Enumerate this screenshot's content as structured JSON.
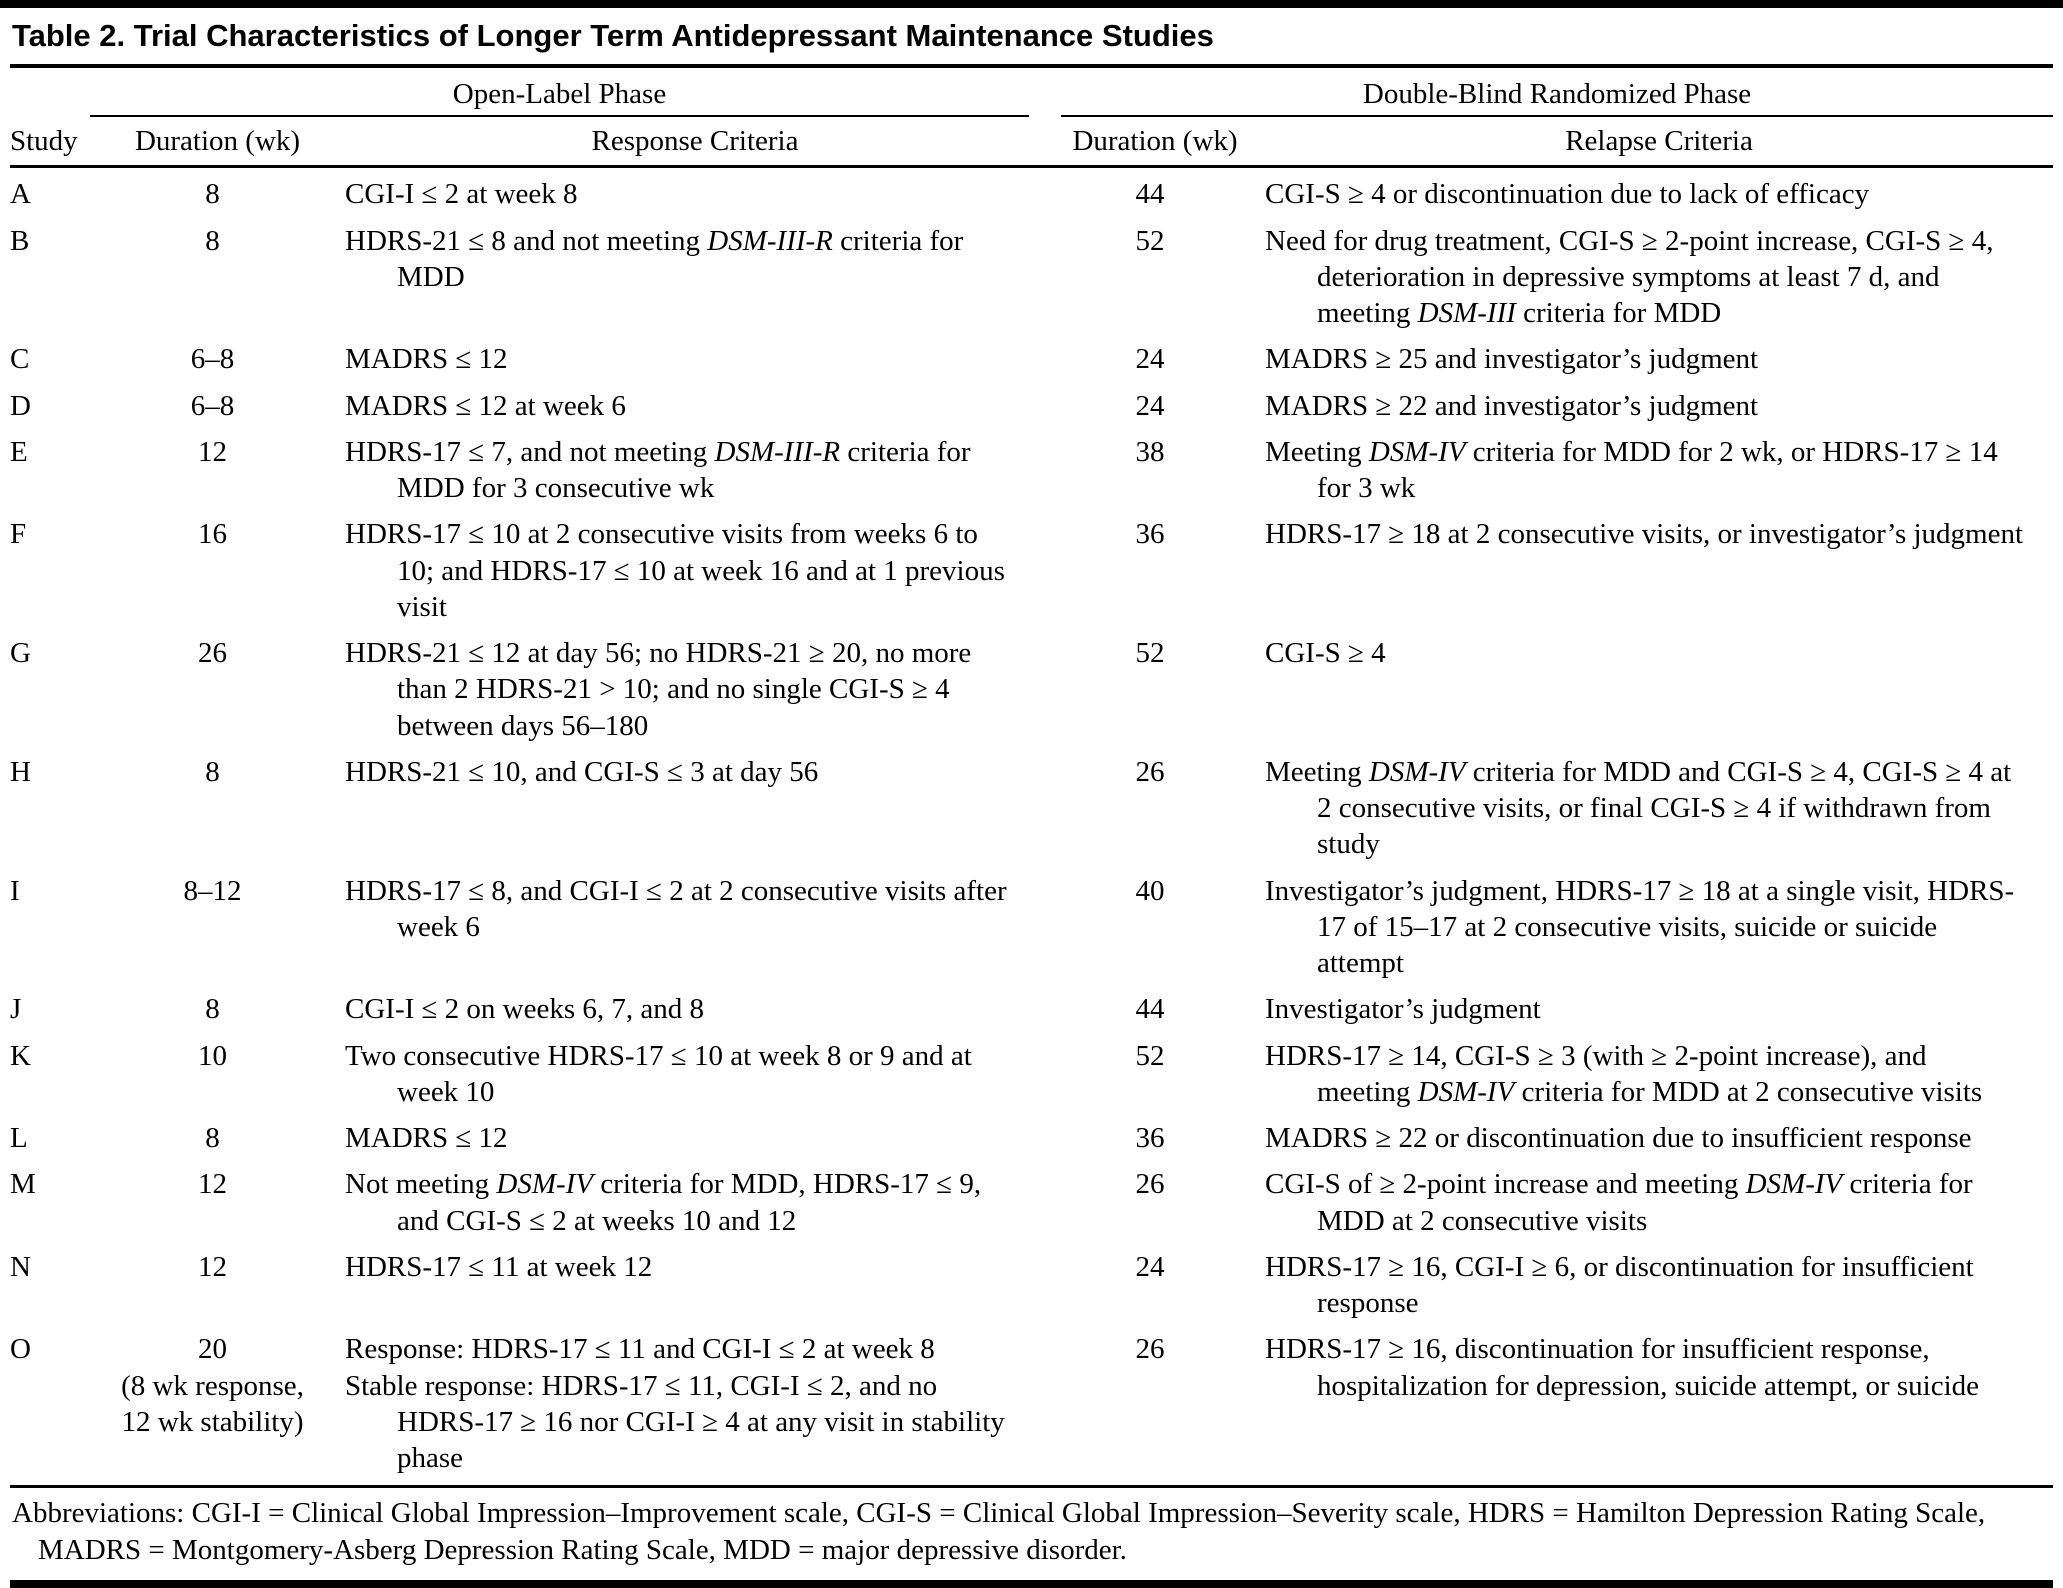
{
  "colors": {
    "text": "#000000",
    "background": "#ffffff",
    "rule": "#000000"
  },
  "title": "Table 2. Trial Characteristics of Longer Term Antidepressant Maintenance Studies",
  "header": {
    "open_label": "Open-Label Phase",
    "double_blind": "Double-Blind Randomized Phase",
    "study": "Study",
    "duration_open": "Duration (wk)",
    "response": "Response Criteria",
    "duration_db": "Duration (wk)",
    "relapse": "Relapse Criteria"
  },
  "rows": [
    {
      "study": "A",
      "ol_duration": "8",
      "response": "CGI-I ≤ 2 at week 8",
      "db_duration": "44",
      "relapse": "CGI-S ≥ 4 or discontinuation due to lack of efficacy"
    },
    {
      "study": "B",
      "ol_duration": "8",
      "response": "HDRS-21 ≤ 8 and not meeting *DSM-III-R* criteria for MDD",
      "db_duration": "52",
      "relapse": "Need for drug treatment, CGI-S ≥ 2-point increase, CGI-S ≥ 4, deterioration in depressive symptoms at least 7 d, and meeting *DSM-III* criteria for MDD"
    },
    {
      "study": "C",
      "ol_duration": "6–8",
      "response": "MADRS ≤ 12",
      "db_duration": "24",
      "relapse": "MADRS ≥ 25 and investigator’s judgment"
    },
    {
      "study": "D",
      "ol_duration": "6–8",
      "response": "MADRS ≤ 12 at week 6",
      "db_duration": "24",
      "relapse": "MADRS ≥ 22 and investigator’s judgment"
    },
    {
      "study": "E",
      "ol_duration": "12",
      "response": "HDRS-17 ≤ 7, and not meeting *DSM-III-R* criteria for MDD for 3 consecutive wk",
      "db_duration": "38",
      "relapse": "Meeting *DSM-IV* criteria for MDD for 2 wk, or HDRS-17 ≥ 14 for 3 wk"
    },
    {
      "study": "F",
      "ol_duration": "16",
      "response": "HDRS-17 ≤ 10 at 2 consecutive visits from weeks 6 to 10; and HDRS-17 ≤ 10 at week 16 and at 1 previous visit",
      "db_duration": "36",
      "relapse": "HDRS-17 ≥ 18 at 2 consecutive visits, or investigator’s judgment"
    },
    {
      "study": "G",
      "ol_duration": "26",
      "response": "HDRS-21 ≤ 12 at day 56; no HDRS-21 ≥ 20, no more than 2 HDRS-21 > 10; and no single CGI-S ≥ 4 between days 56–180",
      "db_duration": "52",
      "relapse": "CGI-S ≥ 4"
    },
    {
      "study": "H",
      "ol_duration": "8",
      "response": "HDRS-21 ≤ 10, and CGI-S ≤ 3 at day 56",
      "db_duration": "26",
      "relapse": "Meeting *DSM-IV* criteria for MDD and CGI-S ≥ 4, CGI-S ≥ 4 at 2 consecutive visits, or final CGI-S ≥ 4 if withdrawn from study"
    },
    {
      "study": "I",
      "ol_duration": "8–12",
      "response": "HDRS-17 ≤ 8, and CGI-I ≤ 2 at 2 consecutive visits after week 6",
      "db_duration": "40",
      "relapse": "Investigator’s judgment, HDRS-17 ≥ 18 at a single visit, HDRS-17 of 15–17 at 2 consecutive visits, suicide or suicide attempt"
    },
    {
      "study": "J",
      "ol_duration": "8",
      "response": "CGI-I ≤ 2 on weeks 6, 7, and 8",
      "db_duration": "44",
      "relapse": "Investigator’s judgment"
    },
    {
      "study": "K",
      "ol_duration": "10",
      "response": "Two consecutive HDRS-17 ≤ 10 at week 8 or 9 and at week 10",
      "db_duration": "52",
      "relapse": "HDRS-17 ≥ 14, CGI-S ≥ 3 (with ≥ 2-point increase), and meeting *DSM-IV* criteria for MDD at 2 consecutive visits"
    },
    {
      "study": "L",
      "ol_duration": "8",
      "response": "MADRS ≤ 12",
      "db_duration": "36",
      "relapse": "MADRS ≥ 22 or discontinuation due to insufficient response"
    },
    {
      "study": "M",
      "ol_duration": "12",
      "response": "Not meeting *DSM-IV* criteria for MDD, HDRS-17 ≤ 9, and CGI-S ≤ 2 at weeks 10 and 12",
      "db_duration": "26",
      "relapse": "CGI-S of ≥ 2-point increase and meeting *DSM-IV* criteria for MDD at 2 consecutive visits"
    },
    {
      "study": "N",
      "ol_duration": "12",
      "response": "HDRS-17 ≤ 11 at week 12",
      "db_duration": "24",
      "relapse": "HDRS-17 ≥ 16, CGI-I ≥ 6, or discontinuation for insufficient response"
    },
    {
      "study": "O",
      "ol_duration": "20\n(8 wk response,\n12 wk stability)",
      "response": "Response: HDRS-17 ≤ 11 and CGI-I ≤ 2 at week 8\nStable response: HDRS-17 ≤ 11, CGI-I ≤ 2, and no HDRS-17 ≥ 16 nor CGI-I ≥ 4 at any visit in stability phase",
      "db_duration": "26",
      "relapse": "HDRS-17 ≥ 16, discontinuation for insufficient response, hospitalization for depression, suicide attempt, or suicide"
    }
  ],
  "footnote": "Abbreviations: CGI-I = Clinical Global Impression–Improvement scale, CGI-S = Clinical Global Impression–Severity scale, HDRS = Hamilton Depression Rating Scale, MADRS = Montgomery-Asberg Depression Rating Scale, MDD = major depressive disorder."
}
